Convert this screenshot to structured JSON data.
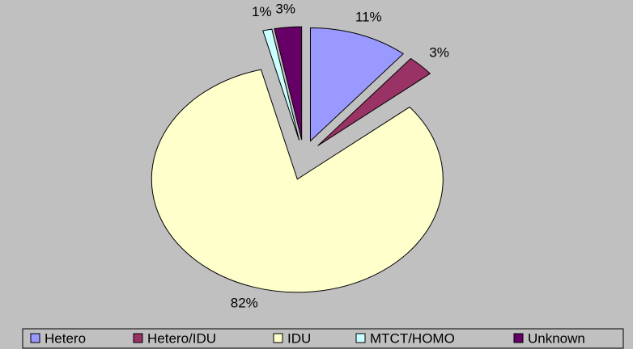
{
  "chart_data": {
    "type": "pie",
    "categories": [
      "Hetero",
      "Hetero/IDU",
      "IDU",
      "MTCT/HOMO",
      "Unknown"
    ],
    "values": [
      11,
      3,
      82,
      1,
      3
    ],
    "value_labels": [
      "11%",
      "3%",
      "82%",
      "1%",
      "3%"
    ],
    "colors": [
      "#9999ff",
      "#993366",
      "#ffffcc",
      "#ccffff",
      "#660066"
    ],
    "legend": "bottom"
  }
}
